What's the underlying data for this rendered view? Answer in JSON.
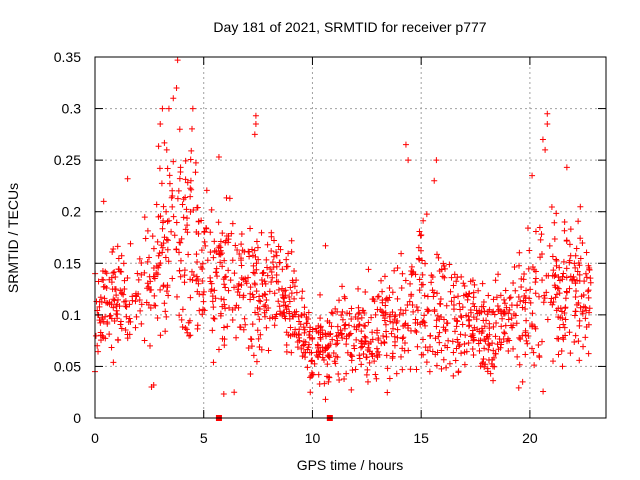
{
  "chart_data": {
    "type": "scatter",
    "title": "Day 181 of 2021, SRMTID for receiver p777",
    "xlabel": "GPS time / hours",
    "ylabel": "SRMTID / TECUs",
    "xlim": [
      0,
      23.5
    ],
    "ylim": [
      0,
      0.35
    ],
    "x_ticks": [
      0,
      5,
      10,
      15,
      20
    ],
    "x_tick_labels": [
      "0",
      "5",
      "10",
      "15",
      "20"
    ],
    "y_ticks": [
      0,
      0.05,
      0.1,
      0.15,
      0.2,
      0.25,
      0.3,
      0.35
    ],
    "y_tick_labels": [
      "0",
      "0.05",
      "0.1",
      "0.15",
      "0.2",
      "0.25",
      "0.3",
      "0.35"
    ],
    "grid": true,
    "marker": "plus",
    "color": "#ff0000",
    "x_range_hours": [
      0,
      22.8
    ],
    "samples": 1400,
    "profile": [
      {
        "hour": 0,
        "mean": 0.1,
        "spread": 0.025
      },
      {
        "hour": 2,
        "mean": 0.12,
        "spread": 0.035
      },
      {
        "hour": 3.5,
        "mean": 0.17,
        "spread": 0.055
      },
      {
        "hour": 5,
        "mean": 0.15,
        "spread": 0.045
      },
      {
        "hour": 7,
        "mean": 0.13,
        "spread": 0.035
      },
      {
        "hour": 9,
        "mean": 0.11,
        "spread": 0.025
      },
      {
        "hour": 10,
        "mean": 0.065,
        "spread": 0.02
      },
      {
        "hour": 12,
        "mean": 0.08,
        "spread": 0.02
      },
      {
        "hour": 14,
        "mean": 0.095,
        "spread": 0.03
      },
      {
        "hour": 15,
        "mean": 0.12,
        "spread": 0.04
      },
      {
        "hour": 17,
        "mean": 0.09,
        "spread": 0.025
      },
      {
        "hour": 19,
        "mean": 0.09,
        "spread": 0.025
      },
      {
        "hour": 20.5,
        "mean": 0.13,
        "spread": 0.04
      },
      {
        "hour": 22.8,
        "mean": 0.12,
        "spread": 0.03
      }
    ],
    "highlights": [
      {
        "x": 3.8,
        "y": 0.347
      },
      {
        "x": 3.75,
        "y": 0.32
      },
      {
        "x": 3.6,
        "y": 0.31
      },
      {
        "x": 3.4,
        "y": 0.3
      },
      {
        "x": 3.1,
        "y": 0.3
      },
      {
        "x": 3.0,
        "y": 0.285
      },
      {
        "x": 3.3,
        "y": 0.26
      },
      {
        "x": 4.5,
        "y": 0.3
      },
      {
        "x": 3.9,
        "y": 0.28
      },
      {
        "x": 7.4,
        "y": 0.293
      },
      {
        "x": 7.4,
        "y": 0.285
      },
      {
        "x": 7.35,
        "y": 0.275
      },
      {
        "x": 14.3,
        "y": 0.265
      },
      {
        "x": 14.4,
        "y": 0.25
      },
      {
        "x": 15.7,
        "y": 0.25
      },
      {
        "x": 15.6,
        "y": 0.23
      },
      {
        "x": 20.8,
        "y": 0.295
      },
      {
        "x": 20.8,
        "y": 0.285
      },
      {
        "x": 20.6,
        "y": 0.27
      },
      {
        "x": 20.7,
        "y": 0.26
      },
      {
        "x": 20.1,
        "y": 0.235
      },
      {
        "x": 1.5,
        "y": 0.232
      },
      {
        "x": 0.4,
        "y": 0.21
      },
      {
        "x": 5.7,
        "y": 0.253
      },
      {
        "x": 21.7,
        "y": 0.243
      },
      {
        "x": 2.6,
        "y": 0.03
      },
      {
        "x": 2.7,
        "y": 0.032
      },
      {
        "x": 0.0,
        "y": 0.045
      },
      {
        "x": 10.6,
        "y": 0.018
      },
      {
        "x": 9.9,
        "y": 0.025
      },
      {
        "x": 10.6,
        "y": 0.167
      },
      {
        "x": 6.4,
        "y": 0.025
      },
      {
        "x": 15.4,
        "y": 0.045
      },
      {
        "x": 21.5,
        "y": 0.05
      },
      {
        "x": 18.3,
        "y": 0.05
      }
    ],
    "zero_markers": [
      {
        "x": 5.7,
        "y": 0
      },
      {
        "x": 10.8,
        "y": 0
      }
    ]
  }
}
